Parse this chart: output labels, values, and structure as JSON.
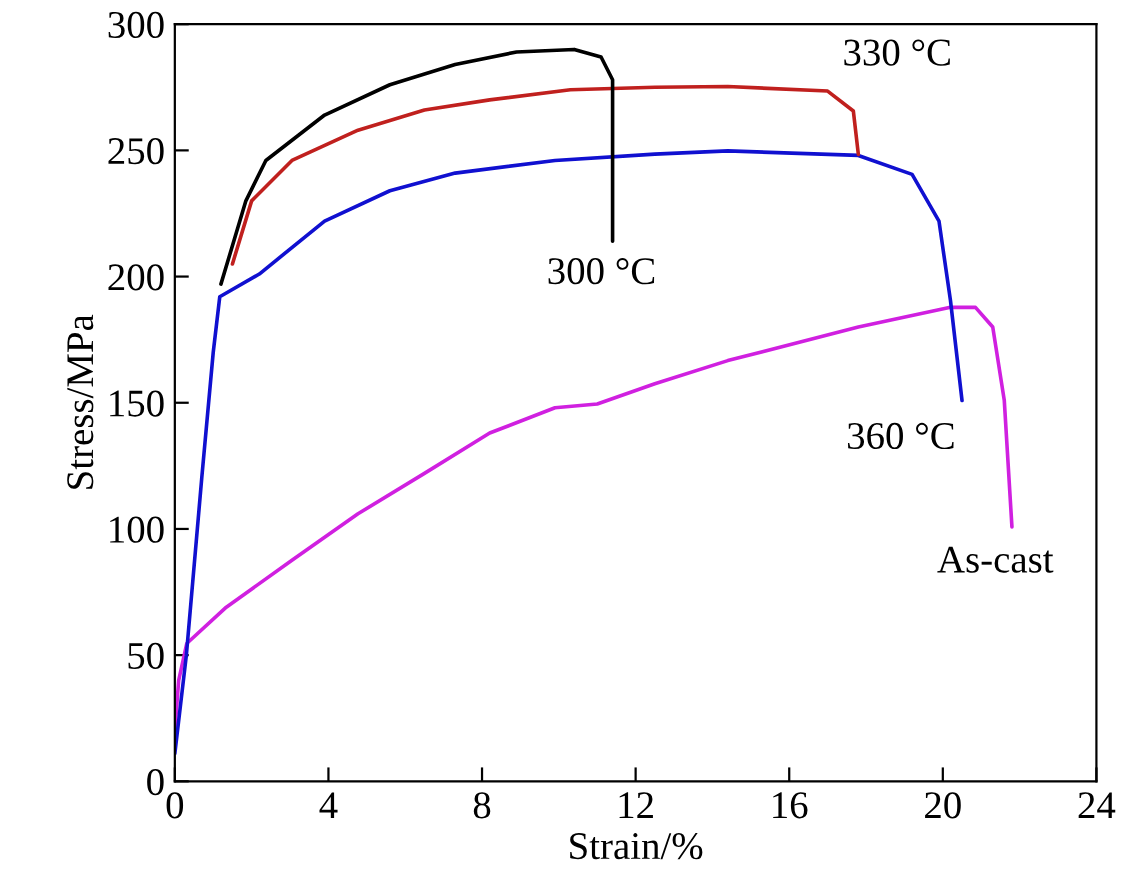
{
  "chart_data": {
    "type": "line",
    "xlabel": "Strain/%",
    "ylabel": "Stress/MPa",
    "xlim": [
      0,
      24
    ],
    "xticks": [
      0,
      4,
      8,
      12,
      16,
      20,
      24
    ],
    "ylim": [
      0,
      300
    ],
    "yticks": [
      0,
      50,
      100,
      150,
      200,
      250,
      300
    ],
    "grid": false,
    "marker": "none",
    "line_style": "solid",
    "series": [
      {
        "name": "As-cast",
        "color": "#d020e0",
        "x": [
          0,
          0.1,
          0.31,
          1.34,
          3.05,
          4.77,
          6.5,
          8.2,
          9.9,
          11.0,
          12.5,
          14.4,
          17.8,
          20.2,
          20.85,
          21.3,
          21.6,
          21.8
        ],
        "values": [
          20,
          40,
          54.6,
          69,
          87.6,
          106,
          122,
          138,
          148,
          149.5,
          157.5,
          166.7,
          180,
          187.8,
          187.8,
          180,
          151,
          100.8
        ]
      },
      {
        "name": "360 °C",
        "color": "#1010d0",
        "x": [
          0,
          0.3,
          0.7,
          1.0,
          1.17,
          2.2,
          3.9,
          5.6,
          7.3,
          9.9,
          12.5,
          14.4,
          17.8,
          19.2,
          19.9,
          20.2,
          20.5
        ],
        "values": [
          11,
          50,
          120,
          170,
          192,
          201,
          222,
          234,
          241,
          246,
          248.5,
          249.8,
          248,
          240.5,
          222,
          190.4,
          150.9
        ]
      },
      {
        "name": "330 °C",
        "color": "#c0201e",
        "x": [
          1.5,
          2.0,
          3.05,
          4.77,
          6.5,
          8.2,
          10.3,
          12.5,
          14.4,
          17.0,
          17.67,
          17.8
        ],
        "values": [
          205,
          230,
          246,
          258,
          266,
          270,
          274,
          275,
          275.3,
          273.5,
          265.6,
          248.4
        ]
      },
      {
        "name": "300 °C",
        "color": "#000000",
        "x": [
          1.2,
          1.85,
          2.37,
          3.9,
          5.6,
          7.3,
          8.9,
          10.4,
          11.1,
          11.4,
          11.4
        ],
        "values": [
          197,
          230,
          246,
          264,
          276,
          284,
          289,
          290,
          287,
          278,
          214
        ]
      }
    ]
  }
}
